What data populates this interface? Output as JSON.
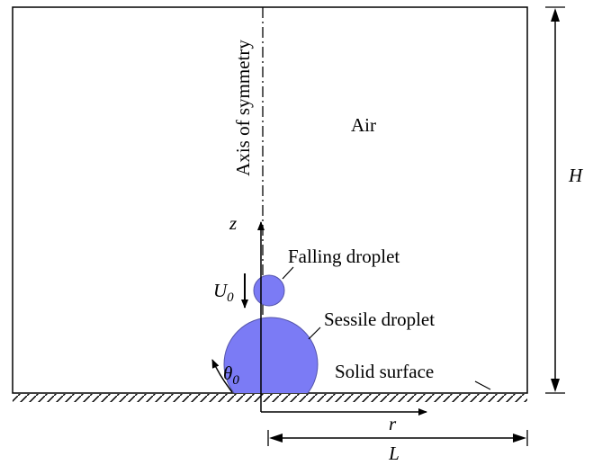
{
  "labels": {
    "axis_of_symmetry": "Axis of symmetry",
    "air": "Air",
    "height": "H",
    "z_axis": "z",
    "falling_droplet": "Falling droplet",
    "velocity": {
      "symbol": "U",
      "subscript": "0"
    },
    "sessile_droplet": "Sessile droplet",
    "contact_angle": {
      "symbol": "θ",
      "subscript": "0"
    },
    "solid_surface": "Solid surface",
    "r_axis": "r",
    "length": "L"
  }
}
